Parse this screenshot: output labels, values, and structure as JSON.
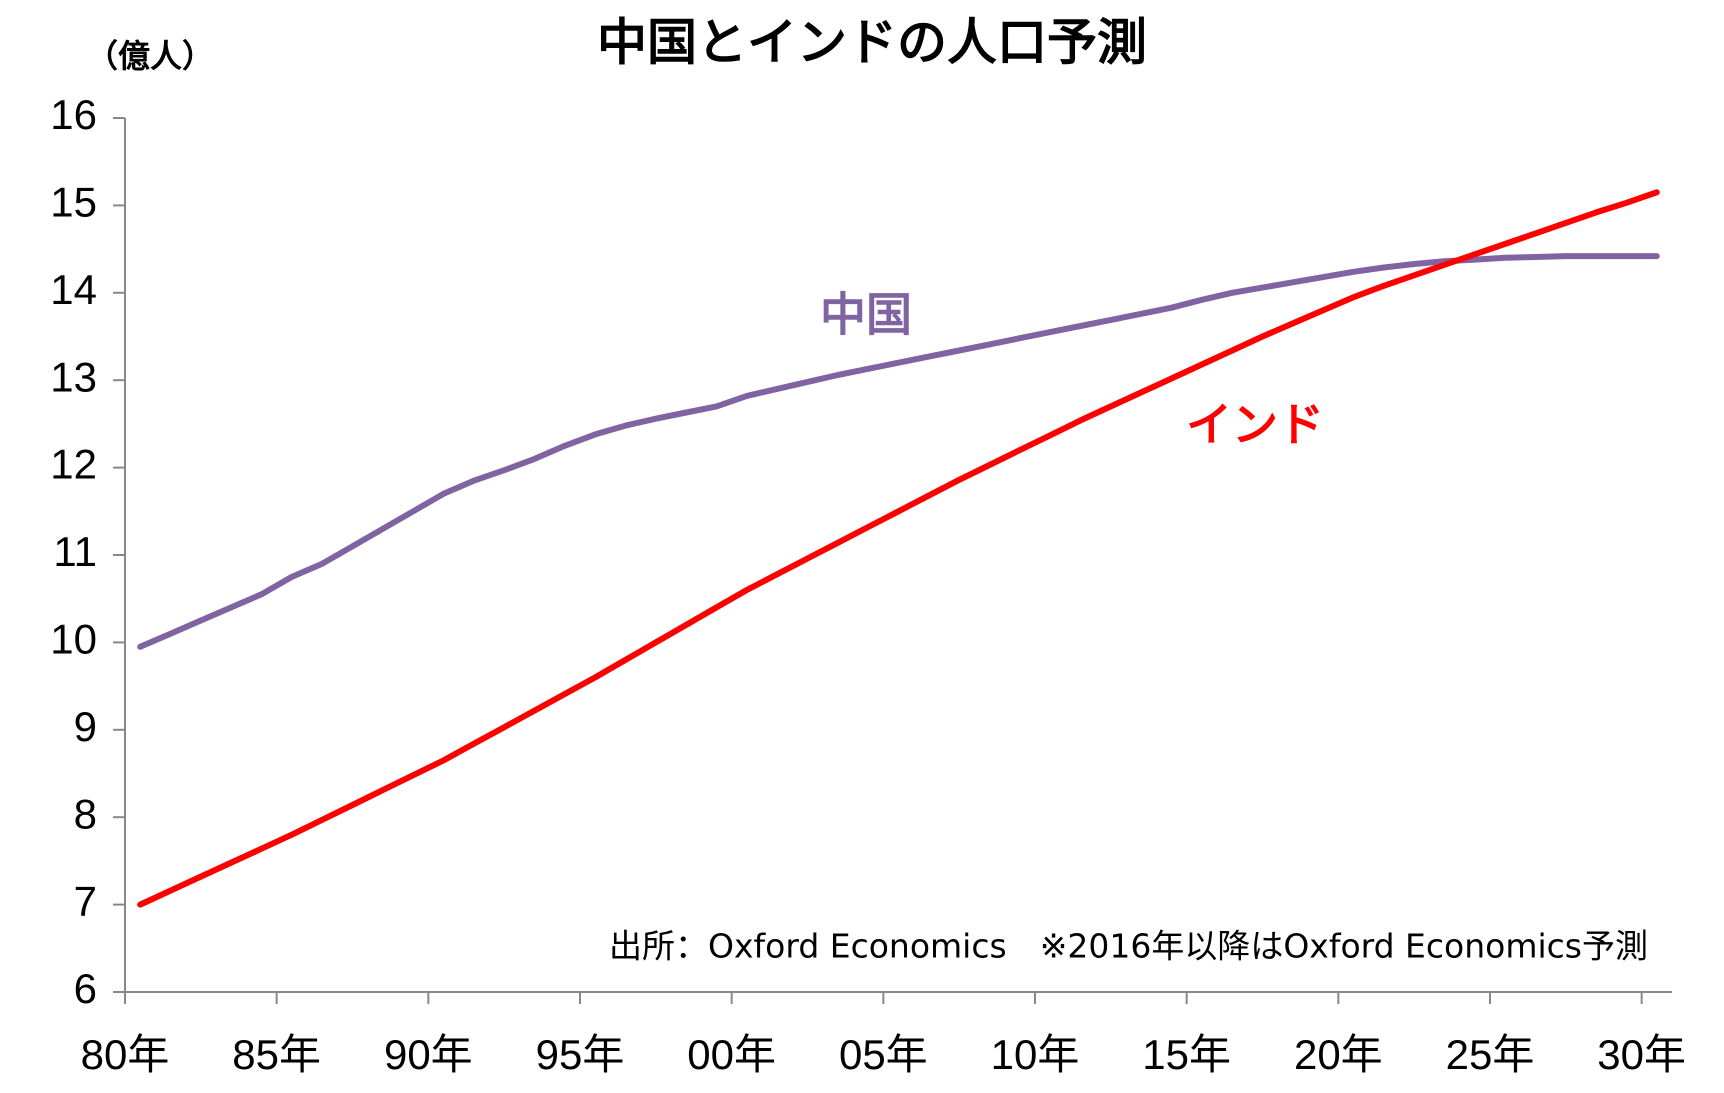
{
  "chart_data": {
    "type": "line",
    "title": "中国とインドの人口予測",
    "y_label": "（億人）",
    "source": "出所：Oxford Economics　※2016年以降はOxford Economics予測",
    "categories": [
      "80年",
      null,
      null,
      null,
      null,
      "85年",
      null,
      null,
      null,
      null,
      "90年",
      null,
      null,
      null,
      null,
      "95年",
      null,
      null,
      null,
      null,
      "00年",
      null,
      null,
      null,
      null,
      "05年",
      null,
      null,
      null,
      null,
      "10年",
      null,
      null,
      null,
      null,
      "15年",
      null,
      null,
      null,
      null,
      "20年",
      null,
      null,
      null,
      null,
      "25年",
      null,
      null,
      null,
      null,
      "30年"
    ],
    "series": [
      {
        "name": "中国",
        "color": "#8064a2",
        "values": [
          9.95,
          10.1,
          10.25,
          10.4,
          10.55,
          10.75,
          10.9,
          11.1,
          11.3,
          11.5,
          11.7,
          11.85,
          11.97,
          12.1,
          12.25,
          12.38,
          12.48,
          12.56,
          12.63,
          12.7,
          12.82,
          12.9,
          12.98,
          13.06,
          13.13,
          13.2,
          13.27,
          13.34,
          13.41,
          13.48,
          13.55,
          13.62,
          13.69,
          13.76,
          13.83,
          13.92,
          14.0,
          14.06,
          14.12,
          14.18,
          14.24,
          14.29,
          14.33,
          14.36,
          14.38,
          14.4,
          14.41,
          14.42,
          14.42,
          14.42,
          14.42
        ]
      },
      {
        "name": "インド",
        "color": "#ff0000",
        "values": [
          7.0,
          7.16,
          7.32,
          7.48,
          7.64,
          7.8,
          7.97,
          8.14,
          8.31,
          8.48,
          8.65,
          8.84,
          9.03,
          9.22,
          9.41,
          9.6,
          9.8,
          10.0,
          10.2,
          10.4,
          10.6,
          10.78,
          10.96,
          11.14,
          11.32,
          11.5,
          11.68,
          11.86,
          12.03,
          12.2,
          12.37,
          12.54,
          12.7,
          12.86,
          13.02,
          13.18,
          13.34,
          13.5,
          13.65,
          13.8,
          13.95,
          14.08,
          14.2,
          14.32,
          14.44,
          14.56,
          14.68,
          14.8,
          14.92,
          15.03,
          15.15
        ]
      }
    ],
    "ylim": [
      6,
      16
    ],
    "yticks": [
      6,
      7,
      8,
      9,
      10,
      11,
      12,
      13,
      14,
      15,
      16
    ],
    "grid": false
  }
}
